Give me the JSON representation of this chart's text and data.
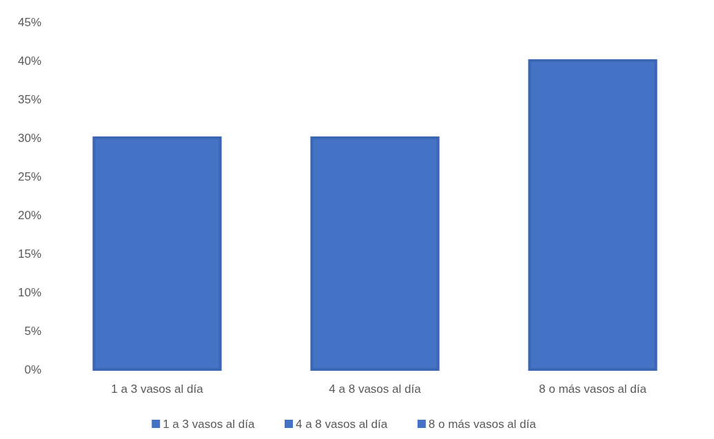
{
  "chart_data": {
    "type": "bar",
    "categories": [
      "1 a 3 vasos al día",
      "4 a 8 vasos al día",
      "8 o más vasos al día"
    ],
    "series": [
      {
        "name": "1 a 3 vasos al día",
        "color": "#4472c4",
        "values": [
          30,
          null,
          null
        ]
      },
      {
        "name": "4 a 8 vasos al día",
        "color": "#4472c4",
        "values": [
          null,
          30,
          null
        ]
      },
      {
        "name": "8 o más vasos al día",
        "color": "#4472c4",
        "values": [
          null,
          null,
          40
        ]
      }
    ],
    "ylim": [
      0,
      45
    ],
    "yticks": [
      {
        "value": 0,
        "label": "0%"
      },
      {
        "value": 5,
        "label": "5%"
      },
      {
        "value": 10,
        "label": "10%"
      },
      {
        "value": 15,
        "label": "15%"
      },
      {
        "value": 20,
        "label": "20%"
      },
      {
        "value": 25,
        "label": "25%"
      },
      {
        "value": 30,
        "label": "30%"
      },
      {
        "value": 35,
        "label": "35%"
      },
      {
        "value": 40,
        "label": "40%"
      },
      {
        "value": 45,
        "label": "45%"
      }
    ],
    "legend": "bottom"
  }
}
